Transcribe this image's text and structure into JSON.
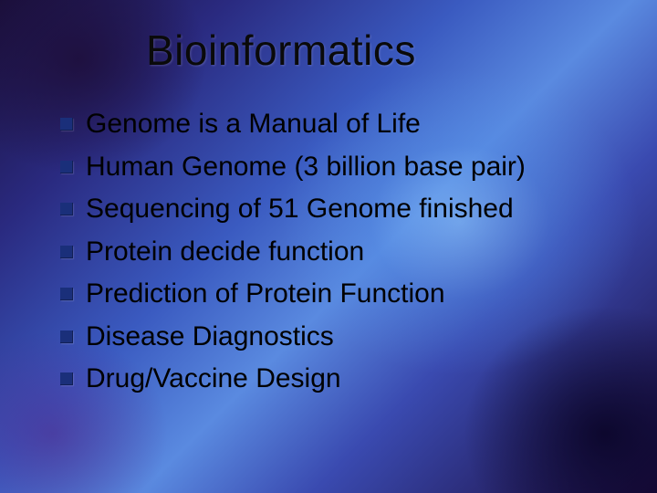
{
  "slide": {
    "title": "Bioinformatics",
    "title_color": "#0a0a0a",
    "title_fontsize": 46,
    "bullet_marker_color": "#1a2f7a",
    "bullet_text_color": "#000000",
    "bullet_fontsize": 30,
    "background_gradient": {
      "type": "nebula",
      "colors": [
        "#1a0f3a",
        "#2a2a80",
        "#3a5ac0",
        "#5a8ae0",
        "#3a4ab0",
        "#1a0a3a"
      ],
      "highlight_center": "#8cc8ff"
    },
    "bullets": [
      "Genome is a Manual of Life",
      "Human Genome (3 billion base pair)",
      "Sequencing of 51 Genome finished",
      " Protein decide function",
      "Prediction of Protein Function",
      "Disease Diagnostics",
      "Drug/Vaccine Design"
    ]
  }
}
